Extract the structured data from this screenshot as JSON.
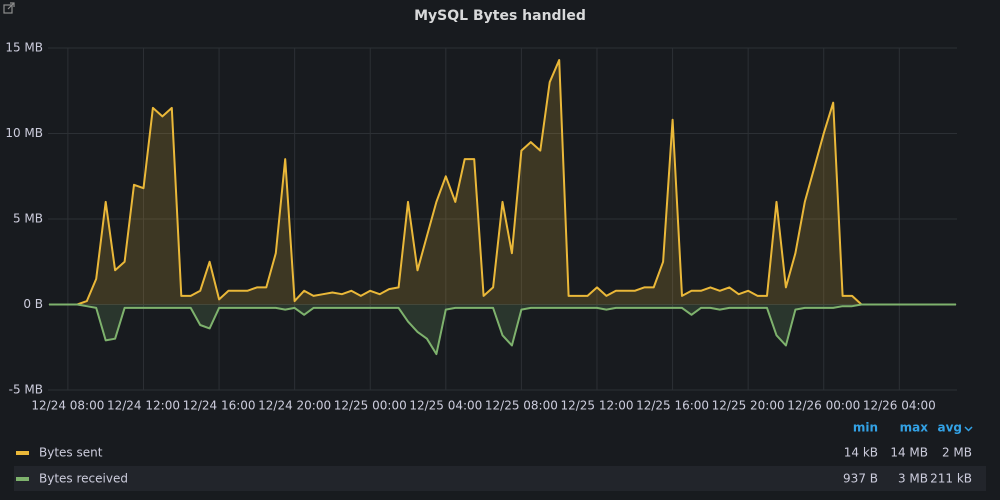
{
  "chart_data": {
    "type": "line",
    "title": "MySQL Bytes handled",
    "x": [
      "12/24 07:00",
      "12/24 07:30",
      "12/24 08:00",
      "12/24 08:30",
      "12/24 09:00",
      "12/24 09:30",
      "12/24 10:00",
      "12/24 10:30",
      "12/24 11:00",
      "12/24 11:30",
      "12/24 12:00",
      "12/24 12:30",
      "12/24 13:00",
      "12/24 13:30",
      "12/24 14:00",
      "12/24 14:30",
      "12/24 15:00",
      "12/24 15:30",
      "12/24 16:00",
      "12/24 16:30",
      "12/24 17:00",
      "12/24 17:30",
      "12/24 18:00",
      "12/24 18:30",
      "12/24 19:00",
      "12/24 19:30",
      "12/24 20:00",
      "12/24 20:30",
      "12/24 21:00",
      "12/24 21:30",
      "12/24 22:00",
      "12/24 22:30",
      "12/24 23:00",
      "12/24 23:30",
      "12/25 00:00",
      "12/25 00:30",
      "12/25 01:00",
      "12/25 01:30",
      "12/25 02:00",
      "12/25 02:30",
      "12/25 03:00",
      "12/25 03:30",
      "12/25 04:00",
      "12/25 04:30",
      "12/25 05:00",
      "12/25 05:30",
      "12/25 06:00",
      "12/25 06:30",
      "12/25 07:00",
      "12/25 07:30",
      "12/25 08:00",
      "12/25 08:30",
      "12/25 09:00",
      "12/25 09:30",
      "12/25 10:00",
      "12/25 10:30",
      "12/25 11:00",
      "12/25 11:30",
      "12/25 12:00",
      "12/25 12:30",
      "12/25 13:00",
      "12/25 13:30",
      "12/25 14:00",
      "12/25 14:30",
      "12/25 15:00",
      "12/25 15:30",
      "12/25 16:00",
      "12/25 16:30",
      "12/25 17:00",
      "12/25 17:30",
      "12/25 18:00",
      "12/25 18:30",
      "12/25 19:00",
      "12/25 19:30",
      "12/25 20:00",
      "12/25 20:30",
      "12/25 21:00",
      "12/25 21:30",
      "12/25 22:00",
      "12/25 22:30",
      "12/25 23:00",
      "12/25 23:30",
      "12/26 00:00",
      "12/26 00:30",
      "12/26 01:00",
      "12/26 01:30",
      "12/26 02:00",
      "12/26 02:30",
      "12/26 03:00",
      "12/26 03:30",
      "12/26 04:00",
      "12/26 04:30",
      "12/26 05:00",
      "12/26 05:30",
      "12/26 06:00",
      "12/26 06:30",
      "12/26 07:00"
    ],
    "xlim": [
      "12/24 07:00",
      "12/26 07:00"
    ],
    "xticks": [
      "12/24 08:00",
      "12/24 12:00",
      "12/24 16:00",
      "12/24 20:00",
      "12/25 00:00",
      "12/25 04:00",
      "12/25 08:00",
      "12/25 12:00",
      "12/25 16:00",
      "12/25 20:00",
      "12/26 00:00",
      "12/26 04:00"
    ],
    "ylim": [
      -5,
      15
    ],
    "yticks": [
      {
        "value": -5,
        "label": "-5 MB"
      },
      {
        "value": 0,
        "label": "0 B"
      },
      {
        "value": 5,
        "label": "5 MB"
      },
      {
        "value": 10,
        "label": "10 MB"
      },
      {
        "value": 15,
        "label": "15 MB"
      }
    ],
    "grid": true,
    "legend_columns": [
      "min",
      "max",
      "avg"
    ],
    "series": [
      {
        "name": "Bytes sent",
        "color": "#eab839",
        "legend_values": [
          "14 kB",
          "14 MB",
          "2 MB"
        ],
        "values": [
          0,
          0,
          0,
          0,
          0.2,
          1.5,
          6,
          2,
          2.5,
          7,
          6.8,
          11.5,
          11,
          11.5,
          0.5,
          0.5,
          0.8,
          2.5,
          0.3,
          0.8,
          0.8,
          0.8,
          1,
          1,
          3,
          8.5,
          0.2,
          0.8,
          0.5,
          0.6,
          0.7,
          0.6,
          0.8,
          0.5,
          0.8,
          0.6,
          0.9,
          1,
          6,
          2,
          4,
          6,
          7.5,
          6,
          8.5,
          8.5,
          0.5,
          1,
          6,
          3,
          9,
          9.5,
          9,
          13,
          14.3,
          0.5,
          0.5,
          0.5,
          1,
          0.5,
          0.8,
          0.8,
          0.8,
          1,
          1,
          2.5,
          10.8,
          0.5,
          0.8,
          0.8,
          1,
          0.8,
          1,
          0.6,
          0.8,
          0.5,
          0.5,
          6,
          1,
          3,
          6,
          8,
          10,
          11.8,
          0.5,
          0.5,
          0,
          0,
          0,
          0,
          0,
          0,
          0,
          0,
          0,
          0,
          0
        ]
      },
      {
        "name": "Bytes received",
        "color": "#7eb26d",
        "legend_values": [
          "937 B",
          "3 MB",
          "211 kB"
        ],
        "values": [
          0,
          0,
          0,
          0,
          -0.1,
          -0.2,
          -2.1,
          -2,
          -0.2,
          -0.2,
          -0.2,
          -0.2,
          -0.2,
          -0.2,
          -0.2,
          -0.2,
          -1.2,
          -1.4,
          -0.2,
          -0.2,
          -0.2,
          -0.2,
          -0.2,
          -0.2,
          -0.2,
          -0.3,
          -0.2,
          -0.6,
          -0.2,
          -0.2,
          -0.2,
          -0.2,
          -0.2,
          -0.2,
          -0.2,
          -0.2,
          -0.2,
          -0.2,
          -1,
          -1.6,
          -2,
          -2.9,
          -0.3,
          -0.2,
          -0.2,
          -0.2,
          -0.2,
          -0.2,
          -1.8,
          -2.4,
          -0.3,
          -0.2,
          -0.2,
          -0.2,
          -0.2,
          -0.2,
          -0.2,
          -0.2,
          -0.2,
          -0.3,
          -0.2,
          -0.2,
          -0.2,
          -0.2,
          -0.2,
          -0.2,
          -0.2,
          -0.2,
          -0.6,
          -0.2,
          -0.2,
          -0.3,
          -0.2,
          -0.2,
          -0.2,
          -0.2,
          -0.2,
          -1.8,
          -2.4,
          -0.3,
          -0.2,
          -0.2,
          -0.2,
          -0.2,
          -0.1,
          -0.1,
          0,
          0,
          0,
          0,
          0,
          0,
          0,
          0,
          0,
          0,
          0
        ]
      }
    ]
  }
}
